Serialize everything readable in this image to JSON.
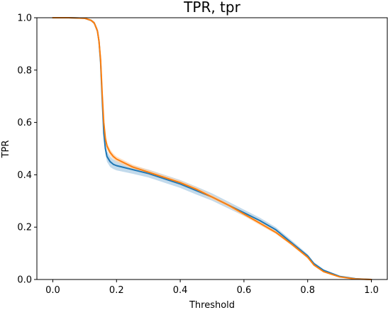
{
  "chart_data": {
    "type": "line",
    "title": "TPR, tpr",
    "xlabel": "Threshold",
    "ylabel": "TPR",
    "xlim": [
      -0.05,
      1.05
    ],
    "ylim": [
      0.0,
      1.0
    ],
    "xticks": [
      "0.0",
      "0.2",
      "0.4",
      "0.6",
      "0.8",
      "1.0"
    ],
    "yticks": [
      "0.0",
      "0.2",
      "0.4",
      "0.6",
      "0.8",
      "1.0"
    ],
    "grid": false,
    "series": [
      {
        "color": "#1f77b4",
        "band_color": "#aecde6",
        "x": [
          0.0,
          0.05,
          0.1,
          0.12,
          0.13,
          0.14,
          0.145,
          0.15,
          0.155,
          0.16,
          0.165,
          0.17,
          0.18,
          0.19,
          0.2,
          0.25,
          0.3,
          0.35,
          0.4,
          0.45,
          0.5,
          0.55,
          0.6,
          0.65,
          0.7,
          0.75,
          0.8,
          0.82,
          0.85,
          0.9,
          0.95,
          1.0
        ],
        "y": [
          1.0,
          1.0,
          0.998,
          0.99,
          0.98,
          0.95,
          0.91,
          0.83,
          0.69,
          0.56,
          0.5,
          0.47,
          0.45,
          0.44,
          0.435,
          0.42,
          0.405,
          0.385,
          0.365,
          0.34,
          0.315,
          0.285,
          0.255,
          0.225,
          0.19,
          0.14,
          0.09,
          0.06,
          0.035,
          0.012,
          0.003,
          0.0
        ],
        "band": [
          0.0,
          0.0,
          0.002,
          0.004,
          0.006,
          0.01,
          0.012,
          0.014,
          0.016,
          0.018,
          0.02,
          0.02,
          0.02,
          0.018,
          0.018,
          0.016,
          0.015,
          0.015,
          0.015,
          0.015,
          0.014,
          0.013,
          0.012,
          0.011,
          0.01,
          0.009,
          0.007,
          0.006,
          0.004,
          0.002,
          0.001,
          0.0
        ]
      },
      {
        "color": "#ff7f0e",
        "band_color": "#ffd3a8",
        "x": [
          0.0,
          0.05,
          0.1,
          0.12,
          0.13,
          0.14,
          0.145,
          0.15,
          0.155,
          0.16,
          0.165,
          0.17,
          0.18,
          0.19,
          0.2,
          0.25,
          0.3,
          0.35,
          0.4,
          0.45,
          0.5,
          0.55,
          0.6,
          0.65,
          0.7,
          0.75,
          0.8,
          0.82,
          0.85,
          0.9,
          0.95,
          1.0
        ],
        "y": [
          1.0,
          1.0,
          0.998,
          0.99,
          0.98,
          0.95,
          0.91,
          0.84,
          0.71,
          0.6,
          0.54,
          0.51,
          0.485,
          0.47,
          0.46,
          0.43,
          0.41,
          0.39,
          0.37,
          0.345,
          0.315,
          0.285,
          0.25,
          0.215,
          0.18,
          0.135,
          0.085,
          0.055,
          0.03,
          0.01,
          0.002,
          0.0
        ],
        "band": [
          0.0,
          0.0,
          0.002,
          0.004,
          0.006,
          0.01,
          0.012,
          0.014,
          0.016,
          0.016,
          0.015,
          0.014,
          0.012,
          0.011,
          0.01,
          0.009,
          0.009,
          0.008,
          0.008,
          0.008,
          0.008,
          0.007,
          0.007,
          0.007,
          0.006,
          0.006,
          0.005,
          0.004,
          0.003,
          0.002,
          0.001,
          0.0
        ]
      }
    ]
  }
}
